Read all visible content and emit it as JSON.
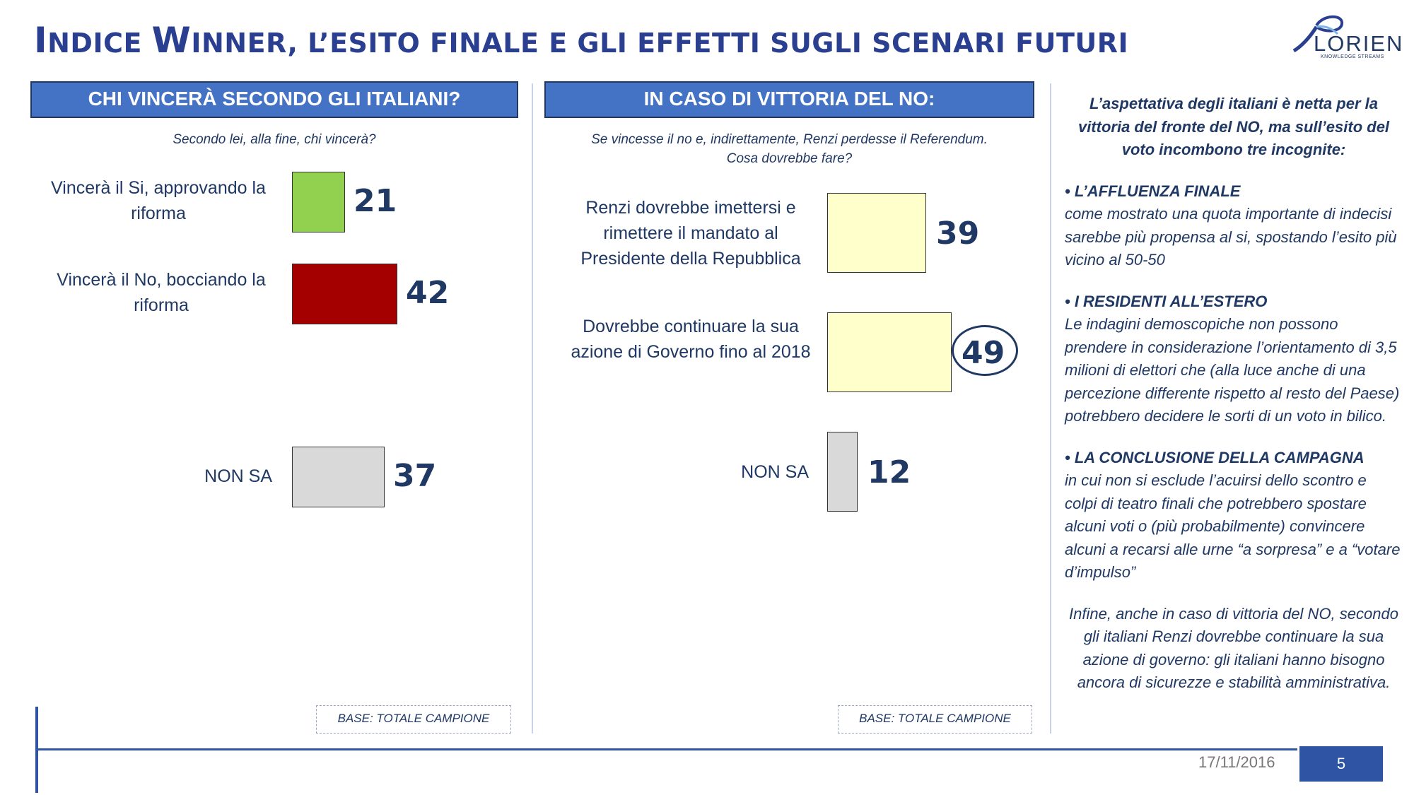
{
  "title": {
    "part1_cap": "I",
    "part1_rest": "NDICE ",
    "part2_cap": "W",
    "part2_rest": "INNER",
    "rest": ", L’ESITO FINALE E GLI EFFETTI SUGLI SCENARI FUTURI"
  },
  "logo": {
    "name": "LORIEN",
    "tagline": "KNOWLEDGE STREAMS"
  },
  "chart_data": [
    {
      "type": "bar",
      "title": "CHI VINCERÀ SECONDO GLI ITALIANI?",
      "subtitle": "Secondo lei, alla fine, chi vincerà?",
      "categories": [
        "Vincerà il Si, approvando la riforma",
        "Vincerà il No, bocciando la riforma",
        "NON SA"
      ],
      "values": [
        21,
        42,
        37
      ],
      "colors": [
        "#92d050",
        "#a50000",
        "#d9d9d9"
      ],
      "orientation": "horizontal",
      "base_note": "BASE: TOTALE CAMPIONE"
    },
    {
      "type": "bar",
      "title": "IN CASO DI VITTORIA DEL NO:",
      "subtitle": "Se vincesse il no e, indirettamente, Renzi perdesse il Referendum. Cosa dovrebbe fare?",
      "categories": [
        "Renzi dovrebbe imettersi e rimettere il mandato al Presidente della Repubblica",
        "Dovrebbe continuare la sua azione di Governo fino al 2018",
        "NON SA"
      ],
      "values": [
        39,
        49,
        12
      ],
      "colors": [
        "#ffffcc",
        "#ffffcc",
        "#d9d9d9"
      ],
      "highlighted": "49",
      "orientation": "horizontal",
      "base_note": "BASE: TOTALE CAMPIONE"
    }
  ],
  "panel1": {
    "head": "CHI VINCERÀ SECONDO GLI ITALIANI?",
    "question": "Secondo lei, alla fine, chi vincerà?",
    "labels": [
      "Vincerà il Si, approvando la riforma",
      "Vincerà il No, bocciando la riforma",
      "NON SA"
    ],
    "values": [
      "21",
      "42",
      "37"
    ],
    "base": "BASE: TOTALE CAMPIONE"
  },
  "panel2": {
    "head": "IN CASO DI VITTORIA DEL NO:",
    "question_line1": "Se vincesse il no e, indirettamente, Renzi perdesse il Referendum.",
    "question_line2": "Cosa dovrebbe fare?",
    "labels": [
      "Renzi dovrebbe imettersi e rimettere il mandato al Presidente della Repubblica",
      "Dovrebbe continuare la sua azione di Governo fino al 2018",
      "NON SA"
    ],
    "values": [
      "39",
      "49",
      "12"
    ],
    "base": "BASE: TOTALE CAMPIONE"
  },
  "sidebar": {
    "intro": "L’aspettativa degli italiani è netta per la vittoria del fronte del NO, ma sull’esito del voto incombono tre incognite:",
    "items": [
      {
        "head": "• L’AFFLUENZA FINALE",
        "text": "come mostrato una quota importante di indecisi sarebbe più propensa al si, spostando l’esito più vicino al 50-50"
      },
      {
        "head": "• I RESIDENTI ALL’ESTERO",
        "text": "Le indagini demoscopiche non possono prendere in considerazione l’orientamento di 3,5 milioni di elettori che (alla luce anche di una percezione differente rispetto al resto del Paese) potrebbero decidere le sorti di un voto in bilico."
      },
      {
        "head": "• LA CONCLUSIONE DELLA CAMPAGNA",
        "text": "in cui non si esclude l’acuirsi dello scontro e colpi di teatro finali che potrebbero spostare alcuni voti o (più probabilmente) convincere alcuni a recarsi alle urne “a sorpresa” e  a “votare d’impulso”"
      }
    ],
    "closing": "Infine, anche in caso di vittoria del NO, secondo gli italiani Renzi dovrebbe continuare la sua azione di governo: gli italiani hanno bisogno ancora di sicurezze e stabilità amministrativa."
  },
  "footer": {
    "date": "17/11/2016",
    "page": "5"
  }
}
